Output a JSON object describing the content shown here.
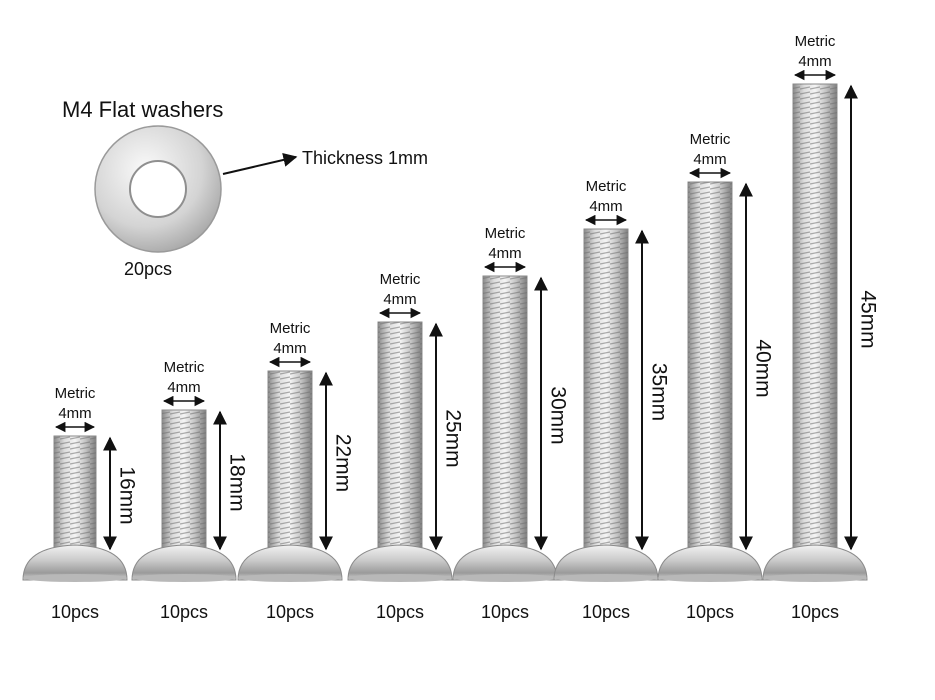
{
  "washer": {
    "title": "M4 Flat washers",
    "thickness_label": "Thickness 1mm",
    "count_label": "20pcs"
  },
  "screws": [
    {
      "metric_label": "Metric",
      "diameter_label": "4mm",
      "length_label": "16mm",
      "count_label": "10pcs",
      "length_mm": 16
    },
    {
      "metric_label": "Metric",
      "diameter_label": "4mm",
      "length_label": "18mm",
      "count_label": "10pcs",
      "length_mm": 18
    },
    {
      "metric_label": "Metric",
      "diameter_label": "4mm",
      "length_label": "22mm",
      "count_label": "10pcs",
      "length_mm": 22
    },
    {
      "metric_label": "Metric",
      "diameter_label": "4mm",
      "length_label": "25mm",
      "count_label": "10pcs",
      "length_mm": 25
    },
    {
      "metric_label": "Metric",
      "diameter_label": "4mm",
      "length_label": "30mm",
      "count_label": "10pcs",
      "length_mm": 30
    },
    {
      "metric_label": "Metric",
      "diameter_label": "4mm",
      "length_label": "35mm",
      "count_label": "10pcs",
      "length_mm": 35
    },
    {
      "metric_label": "Metric",
      "diameter_label": "4mm",
      "length_label": "40mm",
      "count_label": "10pcs",
      "length_mm": 40
    },
    {
      "metric_label": "Metric",
      "diameter_label": "4mm",
      "length_label": "45mm",
      "count_label": "10pcs",
      "length_mm": 45
    }
  ],
  "colors": {
    "background": "#ffffff",
    "steel_light": "#eeeeee",
    "steel_mid": "#bdbdbd",
    "steel_dark": "#7a7a7a",
    "annotation": "#111111"
  }
}
